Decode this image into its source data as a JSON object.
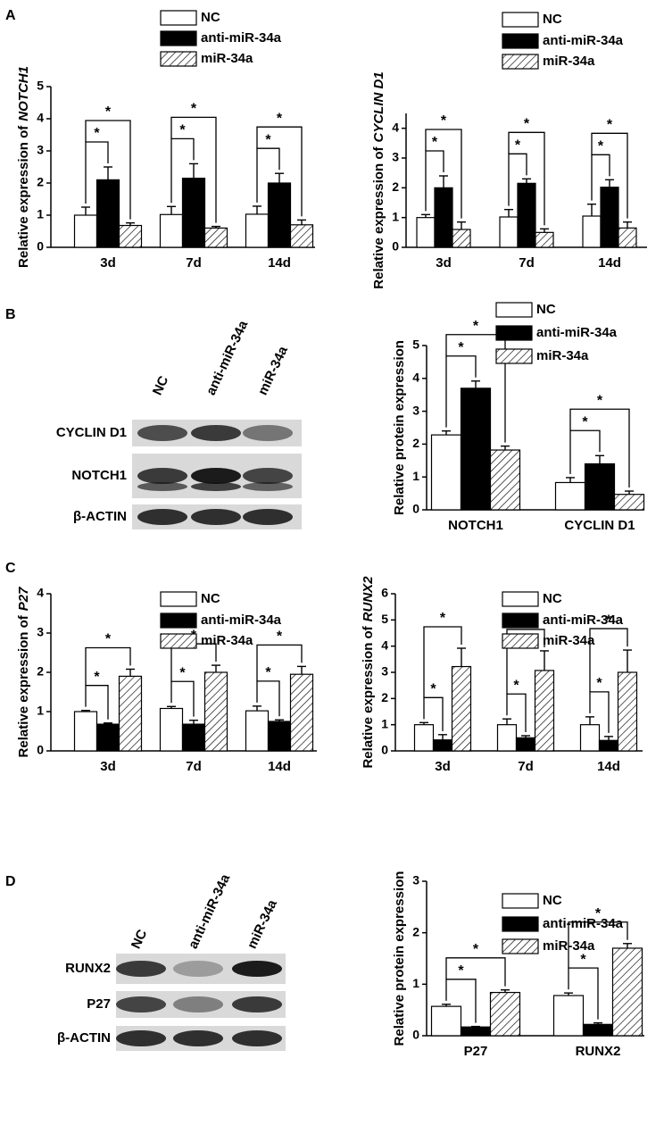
{
  "panels": [
    "A",
    "B",
    "C",
    "D"
  ],
  "blots": [
    {
      "columns": [
        "NC",
        "anti-miR-34a",
        "miR-34a"
      ],
      "rows": [
        "CYCLIN D1",
        "NOTCH1",
        "β-ACTIN"
      ]
    },
    {
      "columns": [
        "NC",
        "anti-miR-34a",
        "miR-34a"
      ],
      "rows": [
        "RUNX2",
        "P27",
        "β-ACTIN"
      ]
    }
  ],
  "chart_data": [
    {
      "type": "bar",
      "ylabel": "Relative expression of",
      "ylabel_italic": "NOTCH1",
      "categories": [
        "3d",
        "7d",
        "14d"
      ],
      "series": [
        {
          "name": "NC",
          "color": "#ffffff",
          "values": [
            1.0,
            1.02,
            1.03
          ],
          "errors": [
            0.25,
            0.25,
            0.25
          ]
        },
        {
          "name": "anti-miR-34a",
          "color": "#000000",
          "values": [
            2.1,
            2.15,
            2.0
          ],
          "errors": [
            0.4,
            0.45,
            0.3
          ]
        },
        {
          "name": "miR-34a",
          "color": "#ffffff",
          "pattern": "hatch",
          "values": [
            0.68,
            0.6,
            0.7
          ],
          "errors": [
            0.08,
            0.05,
            0.15
          ]
        }
      ],
      "ylim": [
        0,
        5
      ],
      "yticks": [
        0,
        1,
        2,
        3,
        4,
        5
      ],
      "significance": [
        [
          "*",
          "*"
        ],
        [
          "*",
          "*"
        ],
        [
          "*",
          "*"
        ]
      ]
    },
    {
      "type": "bar",
      "ylabel": "Relative expression of",
      "ylabel_italic": "CYCLIN D1",
      "categories": [
        "3d",
        "7d",
        "14d"
      ],
      "series": [
        {
          "name": "NC",
          "color": "#ffffff",
          "values": [
            1.0,
            1.02,
            1.05
          ],
          "errors": [
            0.1,
            0.25,
            0.4
          ]
        },
        {
          "name": "anti-miR-34a",
          "color": "#000000",
          "values": [
            2.0,
            2.15,
            2.02
          ],
          "errors": [
            0.4,
            0.15,
            0.25
          ]
        },
        {
          "name": "miR-34a",
          "color": "#ffffff",
          "pattern": "hatch",
          "values": [
            0.6,
            0.5,
            0.65
          ],
          "errors": [
            0.25,
            0.12,
            0.2
          ]
        }
      ],
      "ylim": [
        0,
        4.5
      ],
      "yticks": [
        0,
        1,
        2,
        3,
        4
      ],
      "significance": [
        [
          "*",
          "*"
        ],
        [
          "*",
          "*"
        ],
        [
          "*",
          "*"
        ]
      ]
    },
    {
      "type": "bar",
      "ylabel": "Relative protein expression",
      "categories": [
        "NOTCH1",
        "CYCLIN D1"
      ],
      "series": [
        {
          "name": "NC",
          "color": "#ffffff",
          "values": [
            2.28,
            0.83
          ],
          "errors": [
            0.12,
            0.15
          ]
        },
        {
          "name": "anti-miR-34a",
          "color": "#000000",
          "values": [
            3.7,
            1.4
          ],
          "errors": [
            0.22,
            0.25
          ]
        },
        {
          "name": "miR-34a",
          "color": "#ffffff",
          "pattern": "hatch",
          "values": [
            1.82,
            0.47
          ],
          "errors": [
            0.12,
            0.1
          ]
        }
      ],
      "ylim": [
        0,
        5
      ],
      "yticks": [
        0,
        1,
        2,
        3,
        4,
        5
      ],
      "significance": [
        [
          "*",
          "*"
        ],
        [
          "*",
          "*"
        ]
      ]
    },
    {
      "type": "bar",
      "ylabel": "Relative expression of",
      "ylabel_italic": "P27",
      "categories": [
        "3d",
        "7d",
        "14d"
      ],
      "series": [
        {
          "name": "NC",
          "color": "#ffffff",
          "values": [
            1.0,
            1.08,
            1.02
          ],
          "errors": [
            0.03,
            0.05,
            0.12
          ]
        },
        {
          "name": "anti-miR-34a",
          "color": "#000000",
          "values": [
            0.68,
            0.68,
            0.75
          ],
          "errors": [
            0.03,
            0.1,
            0.04
          ]
        },
        {
          "name": "miR-34a",
          "color": "#ffffff",
          "pattern": "hatch",
          "values": [
            1.9,
            2.0,
            1.95
          ],
          "errors": [
            0.18,
            0.18,
            0.2
          ]
        }
      ],
      "ylim": [
        0,
        4
      ],
      "yticks": [
        0,
        1,
        2,
        3,
        4
      ],
      "significance": [
        [
          "*",
          "*"
        ],
        [
          "*",
          "*"
        ],
        [
          "*",
          "*"
        ]
      ]
    },
    {
      "type": "bar",
      "ylabel": "Relative expression of",
      "ylabel_italic": "RUNX2",
      "categories": [
        "3d",
        "7d",
        "14d"
      ],
      "series": [
        {
          "name": "NC",
          "color": "#ffffff",
          "values": [
            1.0,
            1.0,
            1.0
          ],
          "errors": [
            0.08,
            0.22,
            0.3
          ]
        },
        {
          "name": "anti-miR-34a",
          "color": "#000000",
          "values": [
            0.42,
            0.5,
            0.4
          ],
          "errors": [
            0.2,
            0.08,
            0.15
          ]
        },
        {
          "name": "miR-34a",
          "color": "#ffffff",
          "pattern": "hatch",
          "values": [
            3.22,
            3.07,
            3.0
          ],
          "errors": [
            0.7,
            0.75,
            0.85
          ]
        }
      ],
      "ylim": [
        0,
        6
      ],
      "yticks": [
        0,
        1,
        2,
        3,
        4,
        5,
        6
      ],
      "significance": [
        [
          "*",
          "*"
        ],
        [
          "*",
          "*"
        ],
        [
          "*",
          "*"
        ]
      ]
    },
    {
      "type": "bar",
      "ylabel": "Relative protein expression",
      "categories": [
        "P27",
        "RUNX2"
      ],
      "series": [
        {
          "name": "NC",
          "color": "#ffffff",
          "values": [
            0.57,
            0.78
          ],
          "errors": [
            0.04,
            0.05
          ]
        },
        {
          "name": "anti-miR-34a",
          "color": "#000000",
          "values": [
            0.17,
            0.22
          ],
          "errors": [
            0.01,
            0.03
          ]
        },
        {
          "name": "miR-34a",
          "color": "#ffffff",
          "pattern": "hatch",
          "values": [
            0.84,
            1.7
          ],
          "errors": [
            0.05,
            0.09
          ]
        }
      ],
      "ylim": [
        0,
        3
      ],
      "yticks": [
        0,
        1,
        2,
        3
      ],
      "significance": [
        [
          "*",
          "*"
        ],
        [
          "*",
          "*"
        ]
      ]
    }
  ]
}
